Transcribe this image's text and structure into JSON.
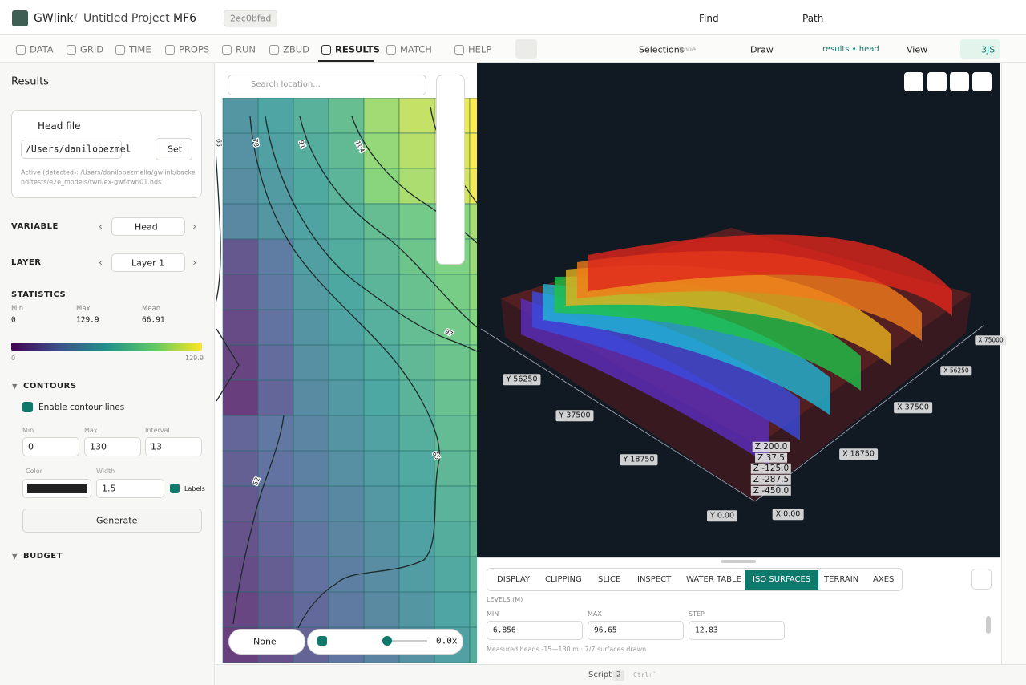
{
  "app": {
    "name": "GWlink",
    "separator": "/",
    "project": "Untitled Project",
    "model": "MF6",
    "commit": "2ec0bfad"
  },
  "title_actions": {
    "find": "Find",
    "path": "Path"
  },
  "nav_tabs": [
    "DATA",
    "GRID",
    "TIME",
    "PROPS",
    "RUN",
    "ZBUD",
    "RESULTS",
    "MATCH",
    "HELP"
  ],
  "toolbar": {
    "selections": "Selections",
    "selections_value": "None",
    "draw": "Draw",
    "results_badge": "results • head",
    "view": "View",
    "engine": "3JS"
  },
  "sidebar": {
    "title": "Results",
    "head_file": {
      "title": "Head file",
      "path": "/Users/danilopezmel",
      "set": "Set",
      "active": "Active (detected): /Users/danilopezmella/gwlink/backend/tests/e2e_models/twri/ex-gwf-twri01.hds"
    },
    "variable": {
      "label": "VARIABLE",
      "value": "Head"
    },
    "layer": {
      "label": "LAYER",
      "value": "Layer 1"
    },
    "statistics": {
      "label": "STATISTICS",
      "min_label": "Min",
      "min": "0",
      "max_label": "Max",
      "max": "129.9",
      "mean_label": "Mean",
      "mean": "66.91",
      "scale_min": "0",
      "scale_max": "129.9"
    },
    "contours": {
      "label": "CONTOURS",
      "enable": "Enable contour lines",
      "min_label": "Min",
      "min": "0",
      "max_label": "Max",
      "max": "130",
      "interval_label": "Interval",
      "interval": "13",
      "color_label": "Color",
      "width_label": "Width",
      "width": "1.5",
      "labels": "Labels",
      "generate": "Generate"
    },
    "budget": "BUDGET"
  },
  "map": {
    "search_placeholder": "Search location...",
    "contour_labels": [
      "65",
      "78",
      "91",
      "104",
      "97",
      "65",
      "52"
    ],
    "layer": "None",
    "speed": "0.0x"
  },
  "viewer": {
    "axis_labels": [
      "Y 56250",
      "Y 37500",
      "Y 18750",
      "Y 0.00",
      "X 0.00",
      "X 18750",
      "X 37500",
      "X 56250",
      "X 75000"
    ],
    "z_labels": [
      "Z 200.0",
      "Z 37.5",
      "Z -125.0",
      "Z -287.5",
      "Z -450.0"
    ]
  },
  "panel": {
    "tabs": [
      "DISPLAY",
      "CLIPPING",
      "SLICE",
      "INSPECT",
      "WATER TABLE",
      "ISO SURFACES",
      "TERRAIN",
      "AXES"
    ],
    "levels": "LEVELS (M)",
    "min_label": "MIN",
    "min": "6.856",
    "max_label": "MAX",
    "max": "96.65",
    "step_label": "STEP",
    "step": "12.83",
    "note": "Measured heads -15—130 m · 7/7 surfaces drawn"
  },
  "status": {
    "script": "Script",
    "count": "2",
    "shortcut": "Ctrl+`"
  }
}
